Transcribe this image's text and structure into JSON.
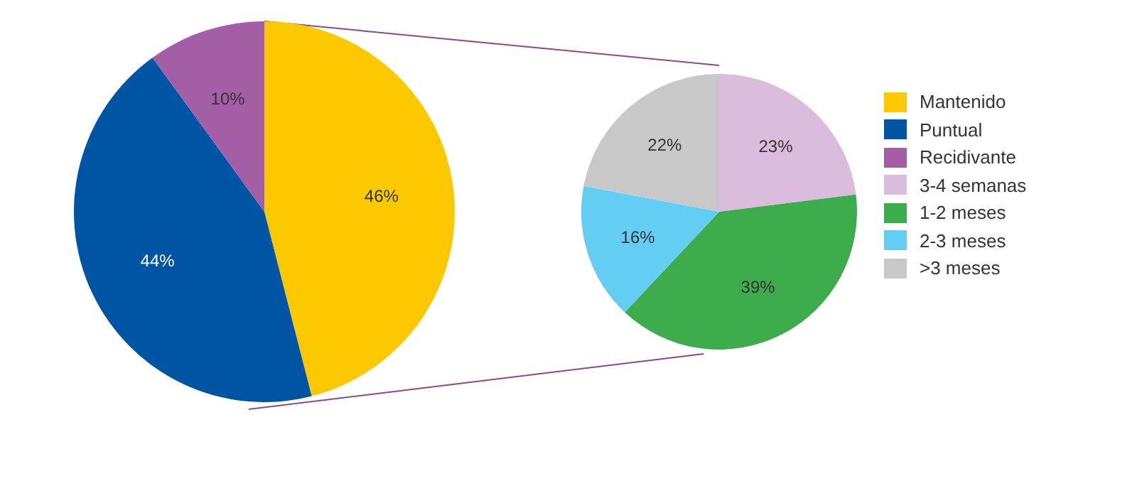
{
  "chart_data": [
    {
      "type": "pie",
      "categories": [
        "Mantenido",
        "Puntual",
        "Recidivante"
      ],
      "values": [
        46,
        44,
        10
      ],
      "colors": [
        "#fcc900",
        "#0054a4",
        "#a45ea6"
      ],
      "value_labels": [
        "46%",
        "44%",
        "10%"
      ],
      "legend": "right"
    },
    {
      "type": "pie",
      "categories": [
        "3-4 semanas",
        "1-2 meses",
        "2-3 meses",
        ">3 meses"
      ],
      "values": [
        23,
        39,
        16,
        22
      ],
      "colors": [
        "#dcbcdc",
        "#3cac4c",
        "#64cdf4",
        "#c8c8c8"
      ],
      "value_labels": [
        "23%",
        "39%",
        "16%",
        "22%"
      ],
      "legend": "right"
    }
  ]
}
